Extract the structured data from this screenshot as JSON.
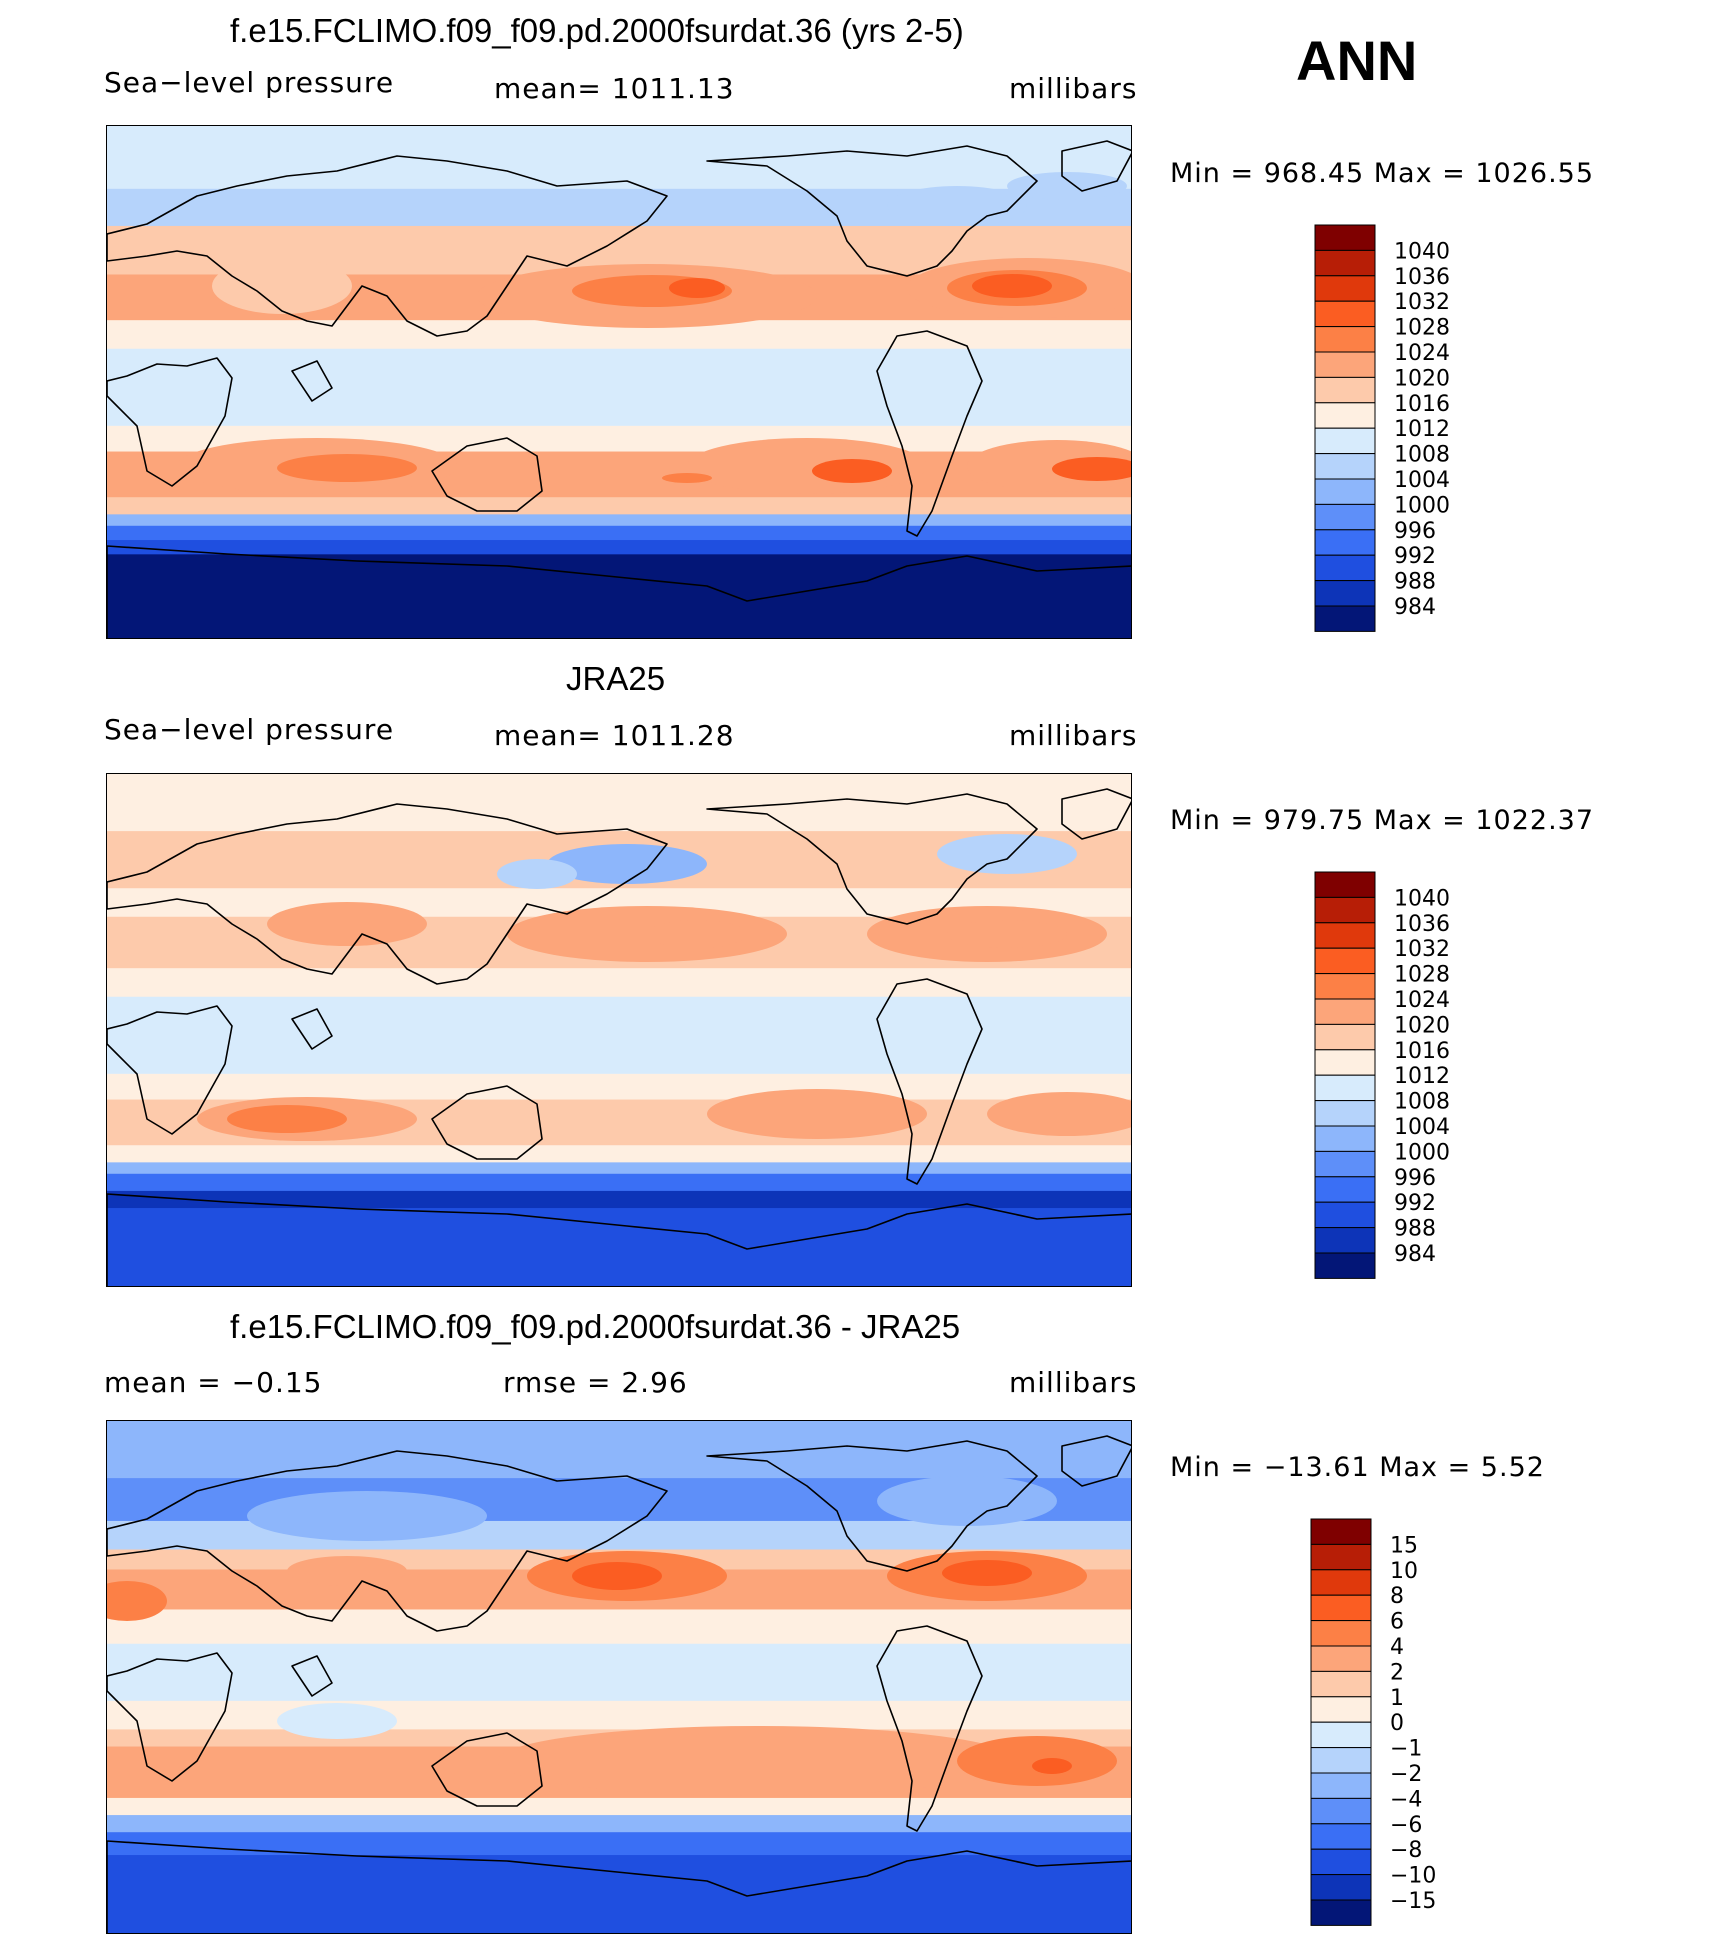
{
  "season": "ANN",
  "panels": [
    {
      "title": "f.e15.FCLIMO.f09_f09.pd.2000fsurdat.36 (yrs 2-5)",
      "left_label": "Sea−level pressure",
      "center_label": "mean=  1011.13",
      "right_label": "millibars",
      "minmax": "Min  =  968.45  Max  =  1026.55",
      "colorbar": {
        "labels": [
          "1040",
          "1036",
          "1032",
          "1028",
          "1024",
          "1020",
          "1016",
          "1012",
          "1008",
          "1004",
          "1000",
          "996",
          "992",
          "988",
          "984"
        ],
        "colors": [
          "#7f0000",
          "#b71e06",
          "#e0390c",
          "#fb5d22",
          "#fc8046",
          "#fca57a",
          "#fdcaab",
          "#feefe1",
          "#d7ebfc",
          "#b5d3fb",
          "#8db6fb",
          "#5e8ff9",
          "#3a6ff5",
          "#1f4fe0",
          "#0d34b8",
          "#031677"
        ]
      },
      "field_bands": [
        {
          "lat": 90,
          "color": "#d7ebfc"
        },
        {
          "lat": 68,
          "color": "#b5d3fb"
        },
        {
          "lat": 55,
          "color": "#fdcaab"
        },
        {
          "lat": 38,
          "color": "#fca57a"
        },
        {
          "lat": 22,
          "color": "#feefe1"
        },
        {
          "lat": 12,
          "color": "#d7ebfc"
        },
        {
          "lat": -15,
          "color": "#feefe1"
        },
        {
          "lat": -24,
          "color": "#fca57a"
        },
        {
          "lat": -40,
          "color": "#fdcaab"
        },
        {
          "lat": -46,
          "color": "#8db6fb"
        },
        {
          "lat": -50,
          "color": "#3a6ff5"
        },
        {
          "lat": -55,
          "color": "#1f4fe0"
        },
        {
          "lat": -60,
          "color": "#031677"
        },
        {
          "lat": -90,
          "color": "#031677"
        }
      ]
    },
    {
      "title": "JRA25",
      "left_label": "Sea−level pressure",
      "center_label": "mean=  1011.28",
      "right_label": "millibars",
      "minmax": "Min  =  979.75  Max  =  1022.37",
      "colorbar": {
        "labels": [
          "1040",
          "1036",
          "1032",
          "1028",
          "1024",
          "1020",
          "1016",
          "1012",
          "1008",
          "1004",
          "1000",
          "996",
          "992",
          "988",
          "984"
        ],
        "colors": [
          "#7f0000",
          "#b71e06",
          "#e0390c",
          "#fb5d22",
          "#fc8046",
          "#fca57a",
          "#fdcaab",
          "#feefe1",
          "#d7ebfc",
          "#b5d3fb",
          "#8db6fb",
          "#5e8ff9",
          "#3a6ff5",
          "#1f4fe0",
          "#0d34b8",
          "#031677"
        ]
      },
      "field_bands": [
        {
          "lat": 90,
          "color": "#feefe1"
        },
        {
          "lat": 70,
          "color": "#fdcaab"
        },
        {
          "lat": 50,
          "color": "#feefe1"
        },
        {
          "lat": 40,
          "color": "#fdcaab"
        },
        {
          "lat": 22,
          "color": "#feefe1"
        },
        {
          "lat": 12,
          "color": "#d7ebfc"
        },
        {
          "lat": -15,
          "color": "#feefe1"
        },
        {
          "lat": -24,
          "color": "#fdcaab"
        },
        {
          "lat": -40,
          "color": "#feefe1"
        },
        {
          "lat": -46,
          "color": "#8db6fb"
        },
        {
          "lat": -50,
          "color": "#3a6ff5"
        },
        {
          "lat": -56,
          "color": "#0d34b8"
        },
        {
          "lat": -62,
          "color": "#1f4fe0"
        },
        {
          "lat": -90,
          "color": "#1f4fe0"
        }
      ]
    },
    {
      "title": "f.e15.FCLIMO.f09_f09.pd.2000fsurdat.36 - JRA25",
      "left_label": "mean  =    −0.15",
      "center_label": "rmse  =      2.96",
      "right_label": "millibars",
      "minmax": "Min  =  −13.61  Max  =      5.52",
      "colorbar": {
        "labels": [
          "15",
          "10",
          "8",
          "6",
          "4",
          "2",
          "1",
          "0",
          "−1",
          "−2",
          "−4",
          "−6",
          "−8",
          "−10",
          "−15"
        ],
        "colors": [
          "#7f0000",
          "#b71e06",
          "#e0390c",
          "#fb5d22",
          "#fc8046",
          "#fca57a",
          "#fdcaab",
          "#feefe1",
          "#d7ebfc",
          "#b5d3fb",
          "#8db6fb",
          "#5e8ff9",
          "#3a6ff5",
          "#1f4fe0",
          "#0d34b8",
          "#031677"
        ]
      },
      "field_bands": [
        {
          "lat": 90,
          "color": "#8db6fb"
        },
        {
          "lat": 70,
          "color": "#5e8ff9"
        },
        {
          "lat": 55,
          "color": "#b5d3fb"
        },
        {
          "lat": 45,
          "color": "#fdcaab"
        },
        {
          "lat": 38,
          "color": "#fca57a"
        },
        {
          "lat": 24,
          "color": "#feefe1"
        },
        {
          "lat": 12,
          "color": "#d7ebfc"
        },
        {
          "lat": -8,
          "color": "#feefe1"
        },
        {
          "lat": -18,
          "color": "#fdcaab"
        },
        {
          "lat": -24,
          "color": "#fca57a"
        },
        {
          "lat": -42,
          "color": "#feefe1"
        },
        {
          "lat": -48,
          "color": "#8db6fb"
        },
        {
          "lat": -54,
          "color": "#3a6ff5"
        },
        {
          "lat": -62,
          "color": "#1f4fe0"
        },
        {
          "lat": -90,
          "color": "#3a6ff5"
        }
      ]
    }
  ]
}
